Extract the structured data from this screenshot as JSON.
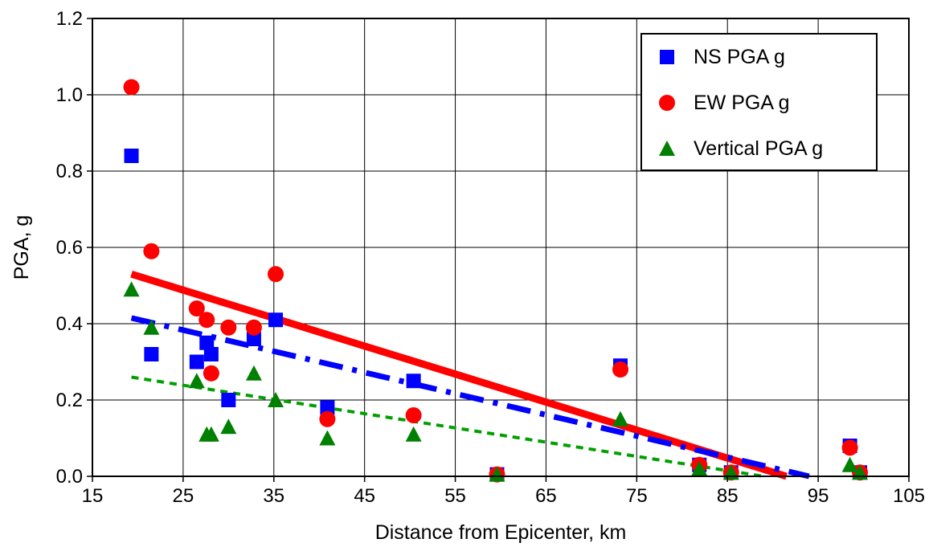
{
  "chart_data": {
    "type": "scatter",
    "title": "",
    "xlabel": "Distance from Epicenter, km",
    "ylabel": "PGA, g",
    "xlim": [
      15,
      105
    ],
    "ylim": [
      0,
      1.2
    ],
    "xticks": [
      "15",
      "25",
      "35",
      "45",
      "55",
      "65",
      "75",
      "85",
      "95",
      "105"
    ],
    "yticks": [
      "0.0",
      "0.2",
      "0.4",
      "0.6",
      "0.8",
      "1.0",
      "1.2"
    ],
    "grid": true,
    "legend_position": "top-right",
    "series": [
      {
        "name": "NS PGA g",
        "marker": "square",
        "color": "#0000ff",
        "points": [
          [
            19.3,
            0.84
          ],
          [
            21.5,
            0.32
          ],
          [
            26.5,
            0.3
          ],
          [
            27.6,
            0.35
          ],
          [
            28.1,
            0.32
          ],
          [
            30.0,
            0.2
          ],
          [
            32.8,
            0.36
          ],
          [
            35.2,
            0.41
          ],
          [
            40.9,
            0.18
          ],
          [
            50.4,
            0.25
          ],
          [
            59.6,
            0.005
          ],
          [
            73.2,
            0.29
          ],
          [
            81.9,
            0.03
          ],
          [
            85.4,
            0.01
          ],
          [
            98.5,
            0.08
          ],
          [
            99.6,
            0.01
          ]
        ]
      },
      {
        "name": "EW PGA g",
        "marker": "circle",
        "color": "#ff0000",
        "points": [
          [
            19.3,
            1.02
          ],
          [
            21.5,
            0.59
          ],
          [
            26.5,
            0.44
          ],
          [
            27.6,
            0.41
          ],
          [
            28.1,
            0.27
          ],
          [
            30.0,
            0.39
          ],
          [
            32.8,
            0.39
          ],
          [
            35.2,
            0.53
          ],
          [
            40.9,
            0.15
          ],
          [
            50.4,
            0.16
          ],
          [
            59.6,
            0.005
          ],
          [
            73.2,
            0.28
          ],
          [
            81.9,
            0.03
          ],
          [
            85.4,
            0.01
          ],
          [
            98.5,
            0.075
          ],
          [
            99.6,
            0.01
          ]
        ]
      },
      {
        "name": "Vertical PGA g",
        "marker": "triangle",
        "color": "#008000",
        "points": [
          [
            19.3,
            0.49
          ],
          [
            21.5,
            0.39
          ],
          [
            26.5,
            0.25
          ],
          [
            27.6,
            0.11
          ],
          [
            28.1,
            0.11
          ],
          [
            30.0,
            0.13
          ],
          [
            32.8,
            0.27
          ],
          [
            35.2,
            0.2
          ],
          [
            40.9,
            0.1
          ],
          [
            50.4,
            0.11
          ],
          [
            59.6,
            0.005
          ],
          [
            73.2,
            0.15
          ],
          [
            81.9,
            0.02
          ],
          [
            85.4,
            0.01
          ],
          [
            98.5,
            0.03
          ],
          [
            99.6,
            0.01
          ]
        ]
      }
    ],
    "trendlines": [
      {
        "series": "EW PGA g",
        "style": "solid",
        "color": "#ff0000",
        "points": [
          [
            19.3,
            0.53
          ],
          [
            91.5,
            0.0
          ]
        ]
      },
      {
        "series": "NS PGA g",
        "style": "dashdot",
        "color": "#0000ff",
        "points": [
          [
            19.3,
            0.415
          ],
          [
            94.0,
            0.0
          ]
        ]
      },
      {
        "series": "Vertical PGA g",
        "style": "dotted",
        "color": "#00a000",
        "points": [
          [
            19.3,
            0.26
          ],
          [
            89.0,
            0.0
          ]
        ]
      }
    ]
  }
}
